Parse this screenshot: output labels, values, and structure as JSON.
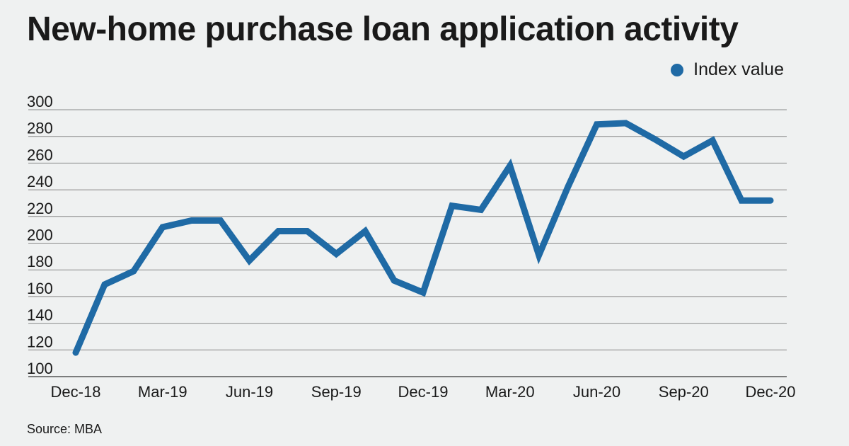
{
  "chart_data": {
    "type": "line",
    "title": "New-home purchase loan application activity",
    "xlabel": "",
    "ylabel": "",
    "ylim": [
      100,
      300
    ],
    "yticks": [
      300,
      280,
      260,
      240,
      220,
      200,
      180,
      160,
      140,
      120,
      100
    ],
    "xtick_labels": [
      "Dec-18",
      "Mar-19",
      "Jun-19",
      "Sep-19",
      "Dec-19",
      "Mar-20",
      "Jun-20",
      "Sep-20",
      "Dec-20"
    ],
    "x": [
      "Dec-18",
      "Jan-19",
      "Feb-19",
      "Mar-19",
      "Apr-19",
      "May-19",
      "Jun-19",
      "Jul-19",
      "Aug-19",
      "Sep-19",
      "Oct-19",
      "Nov-19",
      "Dec-19",
      "Jan-20",
      "Feb-20",
      "Mar-20",
      "Apr-20",
      "May-20",
      "Jun-20",
      "Jul-20",
      "Aug-20",
      "Sep-20",
      "Oct-20",
      "Nov-20",
      "Dec-20"
    ],
    "series": [
      {
        "name": "Index value",
        "color": "#1f6aa5",
        "values": [
          118,
          169,
          179,
          212,
          217,
          217,
          187,
          209,
          209,
          192,
          209,
          172,
          163,
          228,
          225,
          258,
          191,
          242,
          289,
          290,
          278,
          265,
          277,
          232,
          232
        ]
      }
    ],
    "grid": "horizontal",
    "legend_position": "top-right"
  },
  "legend": {
    "label": "Index value"
  },
  "source": "Source: MBA"
}
